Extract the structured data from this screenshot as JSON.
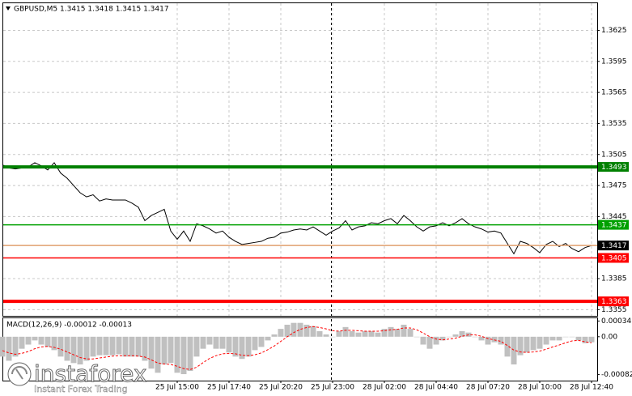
{
  "chart_data": [
    {
      "type": "line",
      "title": "GBPUSD,M5  1.3415 1.3418 1.3415 1.3417",
      "categories": [
        null,
        null,
        null,
        null,
        null,
        null,
        null,
        null,
        null,
        null,
        null,
        null,
        null,
        null,
        null,
        null,
        null,
        null,
        null,
        null,
        null,
        null,
        null,
        null,
        null,
        null,
        null,
        "25 Jul 15:00",
        null,
        null,
        null,
        null,
        null,
        null,
        null,
        "25 Jul 17:40",
        null,
        null,
        null,
        null,
        null,
        null,
        null,
        "25 Jul 20:20",
        null,
        null,
        null,
        null,
        null,
        null,
        null,
        "25 Jul 23:00",
        null,
        null,
        null,
        null,
        null,
        null,
        null,
        "28 Jul 02:00",
        null,
        null,
        null,
        null,
        null,
        null,
        null,
        "28 Jul 04:40",
        null,
        null,
        null,
        null,
        null,
        null,
        null,
        "28 Jul 07:20",
        null,
        null,
        null,
        null,
        null,
        null,
        null,
        "28 Jul 10:00",
        null,
        null,
        null,
        null,
        null,
        null,
        null,
        "28 Jul 12:40"
      ],
      "series": [
        {
          "color": "#000000",
          "values": [
            1.3495,
            1.3492,
            1.3491,
            1.3492,
            1.3493,
            1.3497,
            1.3494,
            1.349,
            1.3497,
            1.3487,
            1.3482,
            1.3475,
            1.3468,
            1.3464,
            1.3466,
            1.346,
            1.3462,
            1.3461,
            1.3461,
            1.3461,
            1.3458,
            1.3454,
            1.3441,
            1.3446,
            1.3449,
            1.3452,
            1.3431,
            1.3423,
            1.3431,
            1.3421,
            1.3438,
            1.3436,
            1.3433,
            1.3429,
            1.3431,
            1.3425,
            1.3421,
            1.3418,
            1.3419,
            1.342,
            1.3421,
            1.3424,
            1.3425,
            1.3429,
            1.343,
            1.3432,
            1.3433,
            1.3432,
            1.3435,
            1.3431,
            1.3427,
            1.3431,
            1.3434,
            1.3441,
            1.3432,
            1.3435,
            1.3436,
            1.3439,
            1.3438,
            1.3441,
            1.3443,
            1.3438,
            1.3446,
            1.3441,
            1.3435,
            1.3431,
            1.3435,
            1.3436,
            1.3439,
            1.3436,
            1.3439,
            1.3443,
            1.3438,
            1.3435,
            1.3433,
            1.343,
            1.3431,
            1.3429,
            1.3419,
            1.3409,
            1.3421,
            1.3419,
            1.3415,
            1.341,
            1.3418,
            1.3421,
            1.3416,
            1.3419,
            1.3414,
            1.3411,
            1.3415,
            1.3417
          ]
        }
      ],
      "ylim": [
        1.3349,
        1.3652
      ],
      "yticks": [
        1.3625,
        1.3595,
        1.3565,
        1.3535,
        1.3505,
        1.3475,
        1.3445,
        1.3385,
        1.3355
      ],
      "grid": true,
      "levels": [
        {
          "value": 1.3493,
          "color": "#008000",
          "label_color": "#008000",
          "style": "bold"
        },
        {
          "value": 1.3437,
          "color": "#00a000",
          "label_color": "#00a000",
          "style": "normal"
        },
        {
          "value": 1.3417,
          "color": "#e0a070",
          "label_color": "#000000",
          "style": "normal"
        },
        {
          "value": 1.3405,
          "color": "#ff0000",
          "label_color": "#ff0000",
          "style": "normal"
        },
        {
          "value": 1.3363,
          "color": "#ff0000",
          "label_color": "#ff0000",
          "style": "bold"
        }
      ]
    },
    {
      "type": "macd",
      "title": "MACD(12,26,9) -0.00012 -0.00013",
      "series": [
        {
          "type": "bar",
          "color": "#c0c0c0",
          "values": [
            -0.00043,
            -0.00052,
            -0.00043,
            -0.00026,
            -0.00017,
            -8e-05,
            -0.00017,
            -0.00022,
            -0.00029,
            -0.00043,
            -0.00052,
            -0.00057,
            -0.0006,
            -0.00052,
            -0.00043,
            -0.0004,
            -0.0004,
            -0.0004,
            -0.00038,
            -0.00043,
            -0.00043,
            -0.00043,
            -0.00052,
            -0.00069,
            -0.00078,
            -0.0006,
            -0.00057,
            -0.00078,
            -0.00081,
            -0.00074,
            -0.00043,
            -0.00026,
            -0.00017,
            -0.00026,
            -0.00026,
            -0.00034,
            -0.00043,
            -0.00048,
            -0.00043,
            -0.00029,
            -0.00022,
            -8e-05,
            5e-05,
            0.00017,
            0.00026,
            0.0003,
            0.0003,
            0.00026,
            0.00023,
            0.00012,
            5e-05,
            0,
            0.00012,
            0.00021,
            0.00012,
            9e-05,
            0.00012,
            0.00012,
            9e-05,
            0.00017,
            0.00021,
            0.00017,
            0.00026,
            0.00017,
            0,
            -0.00017,
            -0.00026,
            -0.00017,
            -8e-05,
            0,
            5e-05,
            0.00012,
            9e-05,
            0,
            -8e-05,
            -0.00017,
            -0.00012,
            -0.00017,
            -0.00043,
            -0.0006,
            -0.0004,
            -0.00034,
            -0.00029,
            -0.00026,
            -0.00017,
            -8e-05,
            -8e-05,
            0,
            0,
            -8e-05,
            -0.00014,
            -0.00012
          ]
        },
        {
          "type": "line",
          "color": "#ff0000",
          "style": "dashed",
          "values": [
            -0.0003,
            -0.00035,
            -0.00038,
            -0.00036,
            -0.00032,
            -0.00026,
            -0.00022,
            -0.00021,
            -0.00023,
            -0.00027,
            -0.00033,
            -0.00039,
            -0.00045,
            -0.00048,
            -0.00048,
            -0.00046,
            -0.00044,
            -0.00042,
            -0.00041,
            -0.00041,
            -0.00041,
            -0.00042,
            -0.00044,
            -0.0005,
            -0.00057,
            -0.00059,
            -0.0006,
            -0.00064,
            -0.00069,
            -0.00071,
            -0.00066,
            -0.00056,
            -0.00047,
            -0.00041,
            -0.00037,
            -0.00036,
            -0.00037,
            -0.0004,
            -0.00041,
            -0.00039,
            -0.00035,
            -0.00028,
            -0.0002,
            -0.0001,
            0,
            9e-05,
            0.00016,
            0.0002,
            0.00022,
            0.0002,
            0.00017,
            0.00013,
            0.00012,
            0.00014,
            0.00014,
            0.00013,
            0.00012,
            0.00012,
            0.00012,
            0.00013,
            0.00015,
            0.00016,
            0.00019,
            0.00019,
            0.00015,
            8e-05,
            0,
            -5e-05,
            -7e-05,
            -5e-05,
            -3e-05,
            1e-05,
            4e-05,
            4e-05,
            1e-05,
            -4e-05,
            -7e-05,
            -0.0001,
            -0.00019,
            -0.00029,
            -0.00033,
            -0.00034,
            -0.00033,
            -0.00031,
            -0.00027,
            -0.00022,
            -0.00018,
            -0.00013,
            -9e-05,
            -8e-05,
            -0.00011,
            -0.00013
          ]
        }
      ],
      "ylim": [
        -0.00095,
        0.0004
      ],
      "yticks": [
        0.00034,
        {
          "value": 0,
          "label": "0.00"
        },
        -0.00082
      ]
    }
  ],
  "watermark": {
    "name": "instaforex",
    "tagline": "Instant Forex Trading"
  }
}
